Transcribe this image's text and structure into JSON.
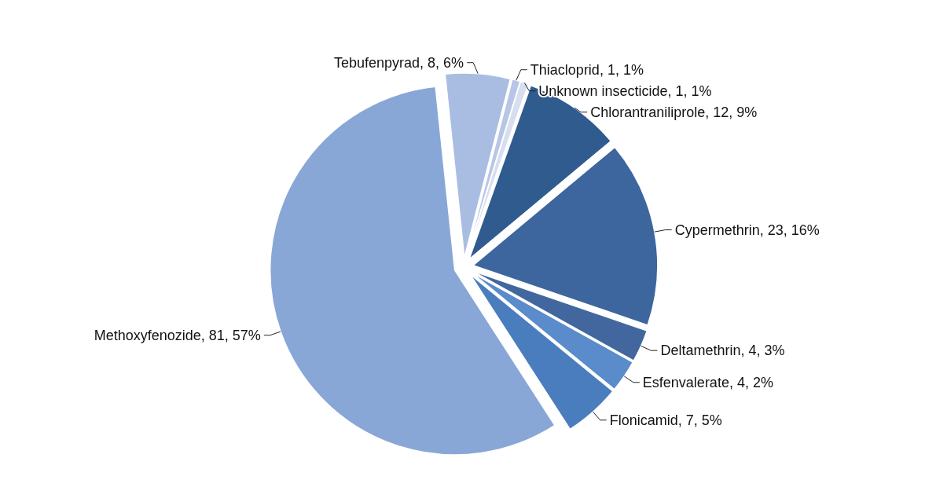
{
  "chart_data": {
    "type": "pie",
    "categories": [
      "Tebufenpyrad",
      "Thiacloprid",
      "Unknown insecticide",
      "Chlorantraniliprole",
      "Cypermethrin",
      "Deltamethrin",
      "Esfenvalerate",
      "Flonicamid",
      "Methoxyfenozide"
    ],
    "values": [
      8,
      1,
      1,
      12,
      23,
      4,
      4,
      7,
      81
    ],
    "value_labels": [
      "8, 6%",
      "1, 1%",
      "1, 1%",
      "12, 9%",
      "23, 16%",
      "4, 3%",
      "4, 2%",
      "7, 5%",
      "81, 57%"
    ],
    "colors": [
      "#a9bde2",
      "#b7c6e6",
      "#d6deef",
      "#2f5b8f",
      "#3c669d",
      "#41679e",
      "#5a8bcb",
      "#4a7dbd",
      "#88a7d7"
    ]
  }
}
